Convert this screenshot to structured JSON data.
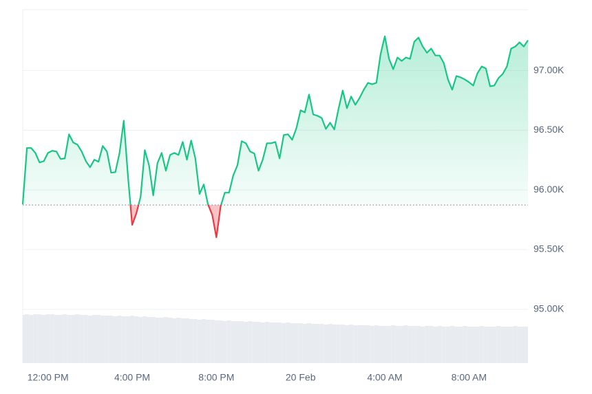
{
  "chart_data": {
    "type": "line",
    "categories": [
      null,
      null,
      null,
      null,
      null,
      null,
      "12:00 PM",
      null,
      null,
      null,
      null,
      null,
      null,
      null,
      null,
      null,
      null,
      null,
      null,
      null,
      null,
      null,
      null,
      null,
      null,
      null,
      "4:00 PM",
      null,
      null,
      null,
      null,
      null,
      null,
      null,
      null,
      null,
      null,
      null,
      null,
      null,
      null,
      null,
      null,
      null,
      null,
      null,
      "8:00 PM",
      null,
      null,
      null,
      null,
      null,
      null,
      null,
      null,
      null,
      null,
      null,
      null,
      null,
      null,
      null,
      null,
      null,
      null,
      null,
      "20 Feb",
      null,
      null,
      null,
      null,
      null,
      null,
      null,
      null,
      null,
      null,
      null,
      null,
      null,
      null,
      null,
      null,
      null,
      null,
      null,
      "4:00 AM",
      null,
      null,
      null,
      null,
      null,
      null,
      null,
      null,
      null,
      null,
      null,
      null,
      null,
      null,
      null,
      null,
      null,
      null,
      null,
      "8:00 AM",
      null,
      null,
      null,
      null,
      null,
      null,
      null,
      null,
      null,
      null,
      null,
      null,
      null,
      null
    ],
    "values": [
      95879,
      96351,
      96351,
      96310,
      96230,
      96241,
      96310,
      96328,
      96322,
      96259,
      96264,
      96466,
      96397,
      96379,
      96322,
      96241,
      96190,
      96253,
      96236,
      96368,
      96322,
      96144,
      96149,
      96310,
      96580,
      96115,
      95707,
      95805,
      95943,
      96333,
      96207,
      95954,
      96224,
      96310,
      96161,
      96293,
      96310,
      96293,
      96402,
      96253,
      96414,
      96264,
      95966,
      96046,
      95879,
      95793,
      95603,
      95862,
      95977,
      95977,
      96121,
      96207,
      96408,
      96391,
      96322,
      96305,
      96161,
      96253,
      96391,
      96391,
      96402,
      96264,
      96460,
      96466,
      96420,
      96517,
      96667,
      96649,
      96799,
      96632,
      96621,
      96603,
      96511,
      96563,
      96506,
      96678,
      96833,
      96684,
      96782,
      96713,
      96770,
      96839,
      96897,
      96885,
      96897,
      97138,
      97287,
      97098,
      97011,
      97109,
      97080,
      97109,
      97098,
      97241,
      97276,
      97201,
      97149,
      97184,
      97126,
      97126,
      97063,
      96925,
      96839,
      96954,
      96943,
      96925,
      96902,
      96874,
      96977,
      97034,
      97017,
      96868,
      96874,
      96937,
      96971,
      97034,
      97184,
      97201,
      97236,
      97201,
      97253
    ],
    "volume": [
      70,
      71,
      70,
      71,
      71,
      70,
      71,
      71,
      70,
      70,
      71,
      70,
      70,
      71,
      70,
      70,
      69,
      70,
      70,
      69,
      69,
      69,
      68,
      69,
      68,
      68,
      69,
      68,
      67,
      68,
      67,
      67,
      66,
      66,
      67,
      66,
      65,
      66,
      65,
      65,
      64,
      64,
      63,
      64,
      63,
      63,
      62,
      62,
      61,
      62,
      61,
      61,
      61,
      60,
      61,
      60,
      60,
      59,
      60,
      59,
      59,
      59,
      58,
      59,
      58,
      58,
      58,
      57,
      58,
      57,
      57,
      57,
      56,
      57,
      56,
      56,
      56,
      55,
      56,
      55,
      55,
      55,
      55,
      54,
      55,
      54,
      54,
      54,
      55,
      54,
      54,
      55,
      54,
      54,
      54,
      53,
      54,
      54,
      53,
      54,
      53,
      53,
      54,
      53,
      53,
      54,
      53,
      53,
      53,
      54,
      53,
      53,
      53,
      54,
      53,
      53,
      53,
      54,
      53,
      53,
      53
    ],
    "baseline": 95874,
    "color": "#16c784",
    "down_color": "#ea3943",
    "volume_color": "#e8ecf1",
    "ylim": [
      94550,
      97510
    ],
    "yticks": [
      {
        "value": 95000,
        "label": "95.00K"
      },
      {
        "value": 95500,
        "label": "95.50K"
      },
      {
        "value": 96000,
        "label": "96.00K"
      },
      {
        "value": 96500,
        "label": "96.50K"
      },
      {
        "value": 97000,
        "label": "97.00K"
      }
    ],
    "grid": true
  }
}
